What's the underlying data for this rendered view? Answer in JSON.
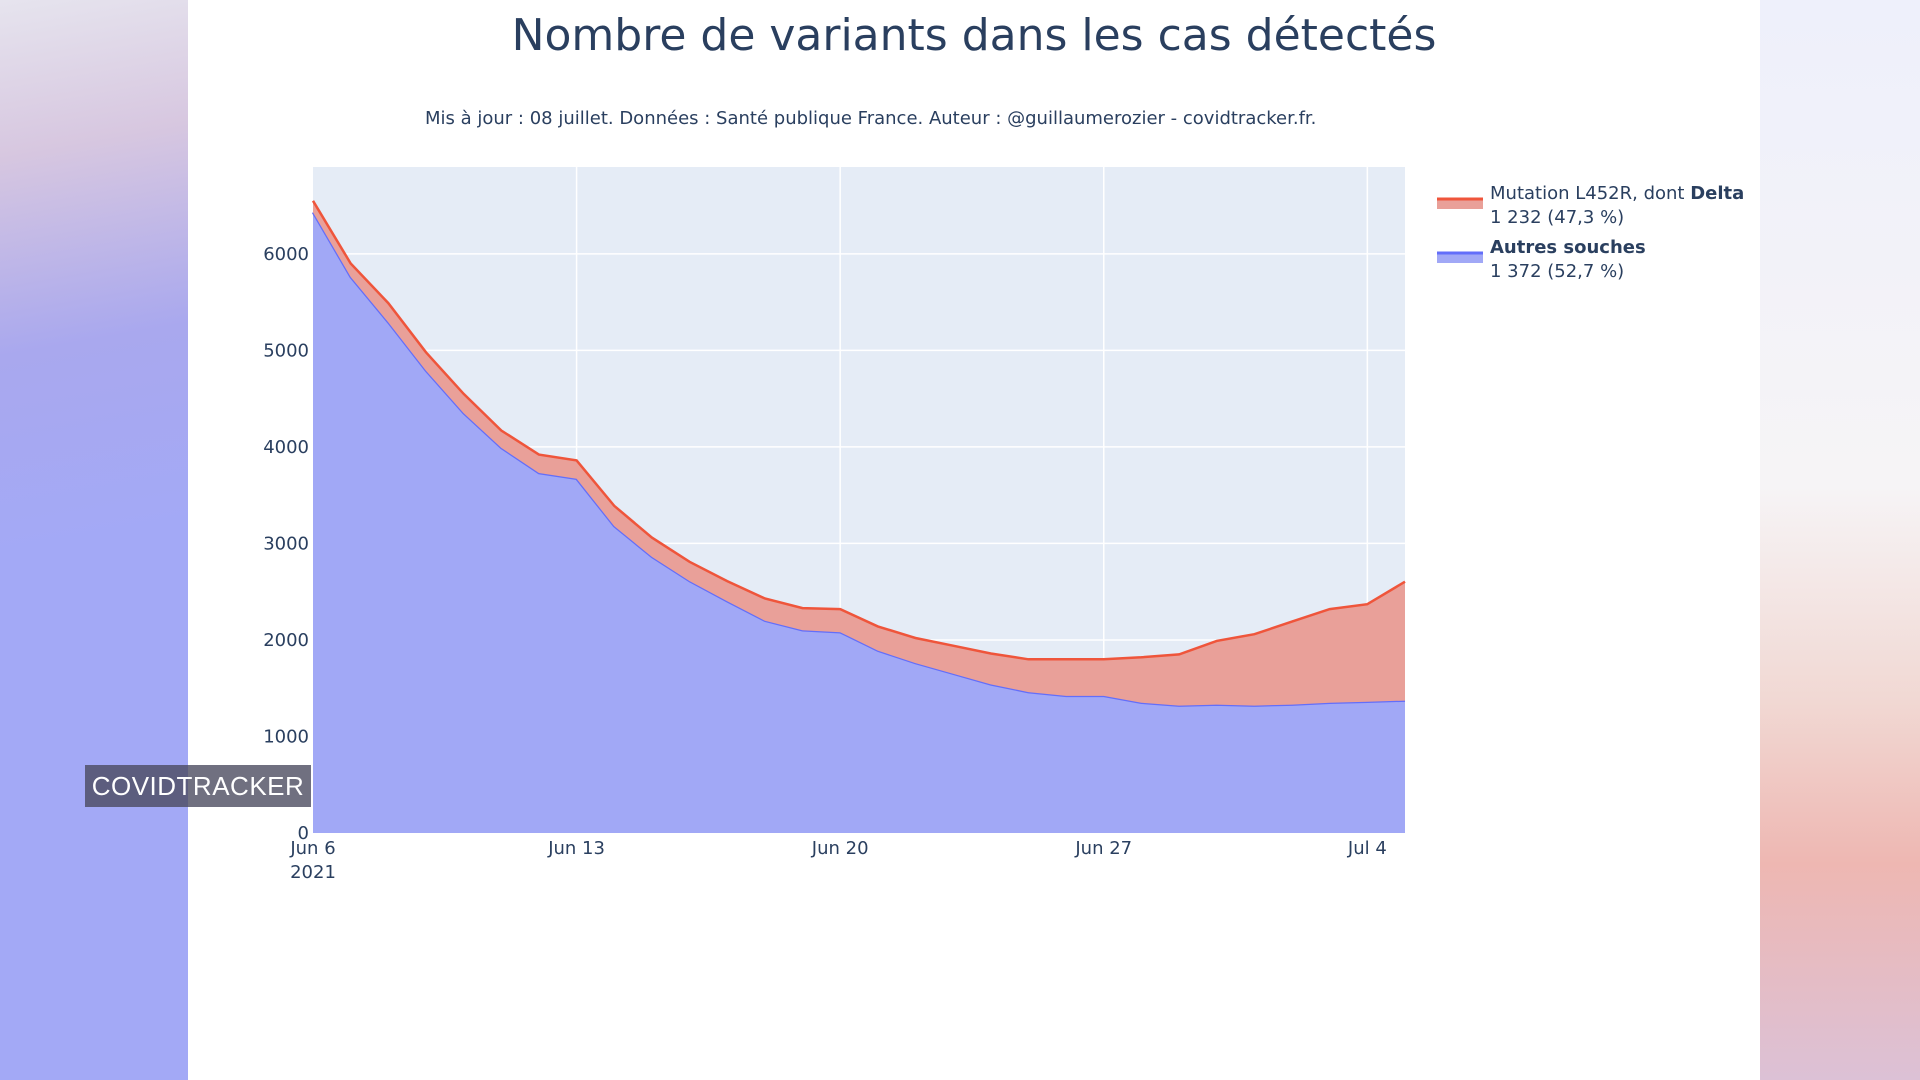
{
  "chart_data": {
    "type": "area",
    "title": "Nombre de variants dans les cas détectés",
    "subtitle": "Mis à jour : 08 juillet. Données : Santé publique France. Auteur : @guillaumerozier - covidtracker.fr.",
    "xlabel": "",
    "ylabel": "",
    "x": [
      "2021-06-06",
      "2021-06-07",
      "2021-06-08",
      "2021-06-09",
      "2021-06-10",
      "2021-06-11",
      "2021-06-12",
      "2021-06-13",
      "2021-06-14",
      "2021-06-15",
      "2021-06-16",
      "2021-06-17",
      "2021-06-18",
      "2021-06-19",
      "2021-06-20",
      "2021-06-21",
      "2021-06-22",
      "2021-06-23",
      "2021-06-24",
      "2021-06-25",
      "2021-06-26",
      "2021-06-27",
      "2021-06-28",
      "2021-06-29",
      "2021-06-30",
      "2021-07-01",
      "2021-07-02",
      "2021-07-03",
      "2021-07-04",
      "2021-07-05"
    ],
    "x_ticks": [
      {
        "day": 0,
        "label": "Jun 6",
        "sublabel": "2021"
      },
      {
        "day": 7,
        "label": "Jun 13",
        "sublabel": ""
      },
      {
        "day": 14,
        "label": "Jun 20",
        "sublabel": ""
      },
      {
        "day": 21,
        "label": "Jun 27",
        "sublabel": ""
      },
      {
        "day": 28,
        "label": "Jul 4",
        "sublabel": ""
      }
    ],
    "ylim": [
      0,
      6900
    ],
    "y_ticks": [
      0,
      1000,
      2000,
      3000,
      4000,
      5000,
      6000
    ],
    "stacked": true,
    "series": [
      {
        "name": "Autres souches",
        "color": "#636efa",
        "values": [
          6430,
          5760,
          5290,
          4790,
          4350,
          3990,
          3730,
          3670,
          3180,
          2860,
          2610,
          2400,
          2200,
          2100,
          2080,
          1890,
          1760,
          1650,
          1540,
          1460,
          1420,
          1420,
          1350,
          1320,
          1330,
          1320,
          1330,
          1350,
          1360,
          1372
        ]
      },
      {
        "name": "Mutation L452R, dont Delta",
        "color": "#ef553b",
        "values": [
          120,
          140,
          200,
          190,
          200,
          180,
          190,
          190,
          210,
          200,
          200,
          210,
          230,
          230,
          240,
          250,
          260,
          290,
          320,
          340,
          380,
          380,
          470,
          530,
          660,
          740,
          860,
          970,
          1010,
          1232
        ]
      }
    ],
    "legend": {
      "position": "top-right",
      "items": [
        {
          "label": "Mutation L452R, dont ",
          "label_bold": "Delta",
          "value": "1 232 (47,3 %)",
          "color": "#ef553b"
        },
        {
          "label": "",
          "label_bold": "Autres souches",
          "value": "1 372 (52,7 %)",
          "color": "#636efa"
        }
      ]
    }
  },
  "watermark": "COVIDTRACKER"
}
